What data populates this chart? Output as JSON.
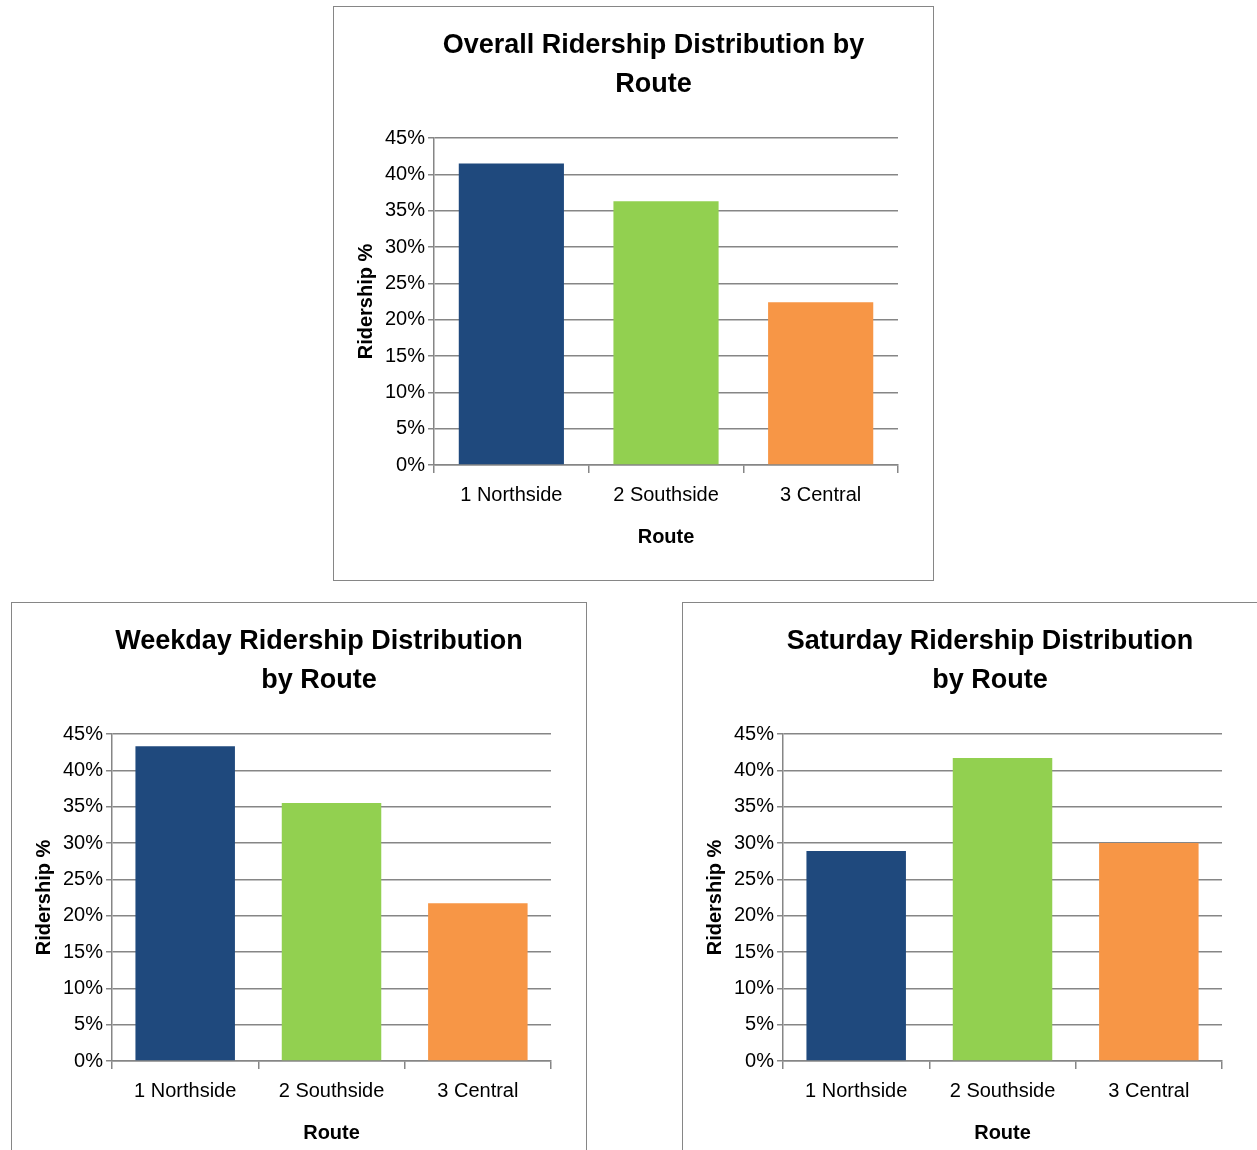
{
  "chart_data": [
    {
      "type": "bar",
      "title": "Overall Ridership Distribution by Route",
      "xlabel": "Route",
      "ylabel": "Ridership %",
      "categories": [
        "1 Northside",
        "2 Southside",
        "3 Central"
      ],
      "values": [
        41.5,
        36.3,
        22.4
      ],
      "colors": [
        "#1f497d",
        "#92d050",
        "#f79646"
      ],
      "ylim": [
        0,
        45
      ],
      "yticks": [
        {
          "value": 0,
          "label": "0%"
        },
        {
          "value": 5,
          "label": "5%"
        },
        {
          "value": 10,
          "label": "10%"
        },
        {
          "value": 15,
          "label": "15%"
        },
        {
          "value": 20,
          "label": "20%"
        },
        {
          "value": 25,
          "label": "25%"
        },
        {
          "value": 30,
          "label": "30%"
        },
        {
          "value": 35,
          "label": "35%"
        },
        {
          "value": 40,
          "label": "40%"
        },
        {
          "value": 45,
          "label": "45%"
        }
      ],
      "grid": "y",
      "legend": false
    },
    {
      "type": "bar",
      "title": "Weekday Ridership Distribution by Route",
      "xlabel": "Route",
      "ylabel": "Ridership %",
      "categories": [
        "1 Northside",
        "2 Southside",
        "3 Central"
      ],
      "values": [
        43.3,
        35.5,
        21.7
      ],
      "colors": [
        "#1f497d",
        "#92d050",
        "#f79646"
      ],
      "ylim": [
        0,
        45
      ],
      "yticks": [
        {
          "value": 0,
          "label": "0%"
        },
        {
          "value": 5,
          "label": "5%"
        },
        {
          "value": 10,
          "label": "10%"
        },
        {
          "value": 15,
          "label": "15%"
        },
        {
          "value": 20,
          "label": "20%"
        },
        {
          "value": 25,
          "label": "25%"
        },
        {
          "value": 30,
          "label": "30%"
        },
        {
          "value": 35,
          "label": "35%"
        },
        {
          "value": 40,
          "label": "40%"
        },
        {
          "value": 45,
          "label": "45%"
        }
      ],
      "grid": "y",
      "legend": false
    },
    {
      "type": "bar",
      "title": "Saturday Ridership Distribution by Route",
      "xlabel": "Route",
      "ylabel": "Ridership %",
      "categories": [
        "1 Northside",
        "2 Southside",
        "3 Central"
      ],
      "values": [
        28.9,
        41.7,
        30.0
      ],
      "colors": [
        "#1f497d",
        "#92d050",
        "#f79646"
      ],
      "ylim": [
        0,
        45
      ],
      "yticks": [
        {
          "value": 0,
          "label": "0%"
        },
        {
          "value": 5,
          "label": "5%"
        },
        {
          "value": 10,
          "label": "10%"
        },
        {
          "value": 15,
          "label": "15%"
        },
        {
          "value": 20,
          "label": "20%"
        },
        {
          "value": 25,
          "label": "25%"
        },
        {
          "value": 30,
          "label": "30%"
        },
        {
          "value": 35,
          "label": "35%"
        },
        {
          "value": 40,
          "label": "40%"
        },
        {
          "value": 45,
          "label": "45%"
        }
      ],
      "grid": "y",
      "legend": false
    }
  ]
}
